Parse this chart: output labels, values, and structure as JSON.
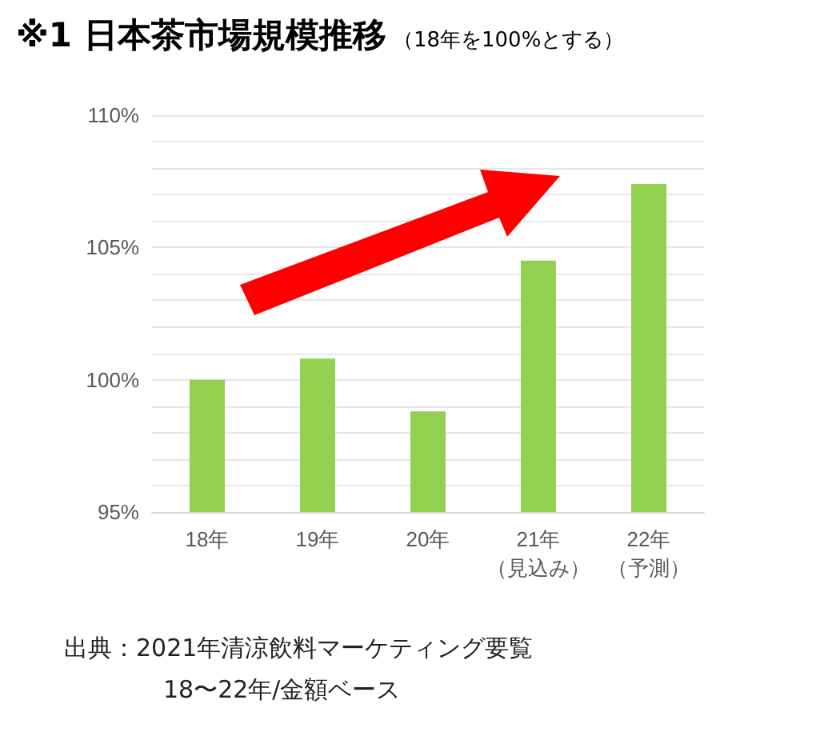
{
  "chart_data": {
    "type": "bar",
    "title": "※1 日本茶市場規模推移",
    "subtitle": "（18年を100%とする）",
    "categories": [
      "18年",
      "19年",
      "20年",
      "21年（見込み）",
      "22年（予測）"
    ],
    "values": [
      100.0,
      100.8,
      98.8,
      104.5,
      107.4
    ],
    "color": "#92d050",
    "ylim": [
      95,
      110
    ],
    "yticks": [
      {
        "value": 95,
        "label": "95%"
      },
      {
        "value": 96,
        "label": null
      },
      {
        "value": 97,
        "label": null
      },
      {
        "value": 98,
        "label": null
      },
      {
        "value": 99,
        "label": null
      },
      {
        "value": 100,
        "label": "100%"
      },
      {
        "value": 101,
        "label": null
      },
      {
        "value": 102,
        "label": null
      },
      {
        "value": 103,
        "label": null
      },
      {
        "value": 104,
        "label": null
      },
      {
        "value": 105,
        "label": "105%"
      },
      {
        "value": 106,
        "label": null
      },
      {
        "value": 107,
        "label": null
      },
      {
        "value": 108,
        "label": null
      },
      {
        "value": 109,
        "label": null
      },
      {
        "value": 110,
        "label": "110%"
      }
    ],
    "grid": "y",
    "annotations": [
      "出典：2021年清涼飲料マーケティング要覧",
      "18〜22年/金額ベース"
    ]
  }
}
